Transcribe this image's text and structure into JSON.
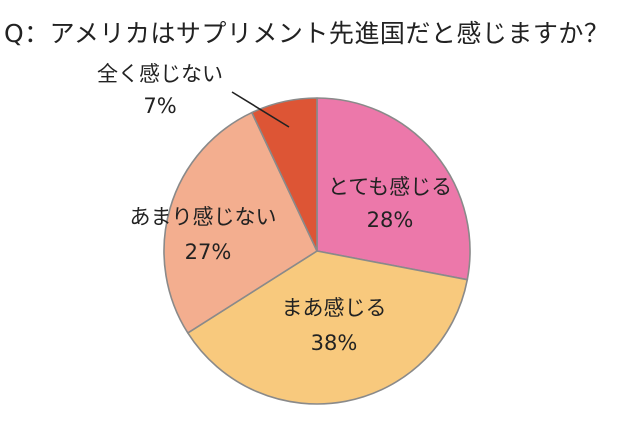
{
  "chart_data": {
    "type": "pie",
    "title": "Q：アメリカはサプリメント先進国だと感じますか？",
    "slices": [
      {
        "label": "とても感じる",
        "value": 28,
        "value_label": "28%",
        "color": "#ec78aa"
      },
      {
        "label": "まあ感じる",
        "value": 38,
        "value_label": "38%",
        "color": "#f8c97d"
      },
      {
        "label": "あまり感じない",
        "value": 27,
        "value_label": "27%",
        "color": "#f3ae8f"
      },
      {
        "label": "全く感じない",
        "value": 7,
        "value_label": "7%",
        "color": "#dd5535"
      }
    ]
  }
}
